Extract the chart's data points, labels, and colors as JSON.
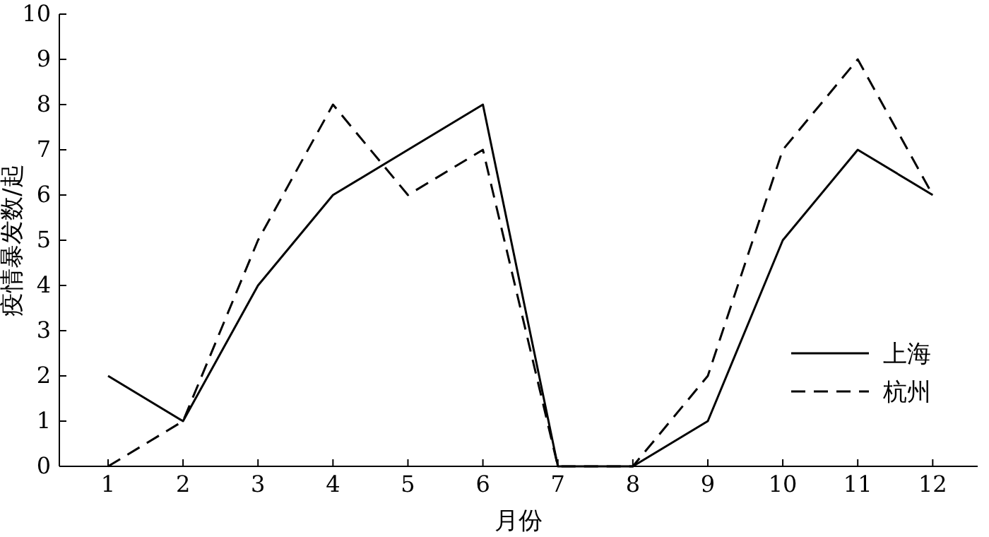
{
  "chart_data": {
    "type": "line",
    "xlabel": "月份",
    "ylabel": "疫情暴发数/起",
    "x": [
      1,
      2,
      3,
      4,
      5,
      6,
      7,
      8,
      9,
      10,
      11,
      12
    ],
    "series": [
      {
        "name": "上海",
        "color": "#000000",
        "line_style": "solid",
        "values": [
          2,
          1,
          4,
          6,
          7,
          8,
          0,
          0,
          1,
          5,
          7,
          6
        ]
      },
      {
        "name": "杭州",
        "color": "#000000",
        "line_style": "dashed",
        "values": [
          0,
          1,
          5,
          8,
          6,
          7,
          0,
          0,
          2,
          7,
          9,
          6
        ]
      }
    ],
    "xlim": [
      0.35,
      12.6
    ],
    "xticks": [
      1,
      2,
      3,
      4,
      5,
      6,
      7,
      8,
      9,
      10,
      11,
      12
    ],
    "ylim": [
      0,
      10
    ],
    "yticks": [
      0,
      1,
      2,
      3,
      4,
      5,
      6,
      7,
      8,
      9,
      10
    ],
    "grid": false,
    "legend": "right",
    "marker": "none"
  }
}
